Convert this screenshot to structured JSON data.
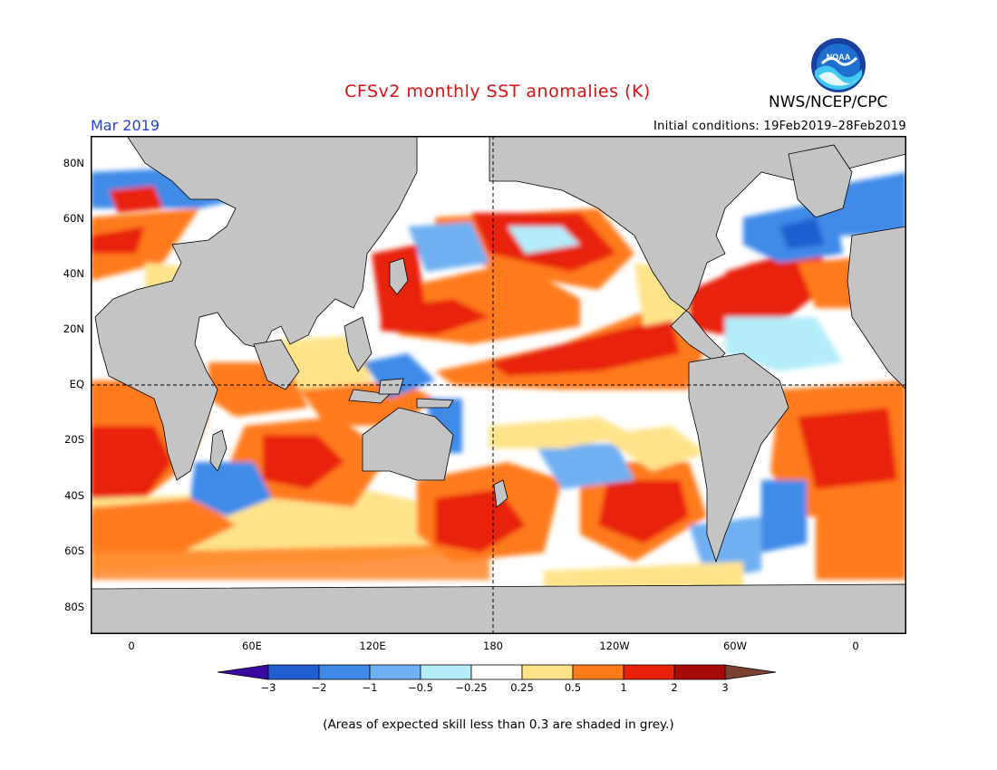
{
  "title": "CFSv2 monthly SST anomalies (K)",
  "organization": "NWS/NCEP/CPC",
  "logo_text": "NOAA",
  "valid_month": "Mar 2019",
  "initial_conditions": "Initial conditions: 19Feb2019–28Feb2019",
  "footnote": "(Areas of expected skill less than 0.3 are shaded in grey.)",
  "axes": {
    "y_labels": [
      "80N",
      "60N",
      "40N",
      "20N",
      "EQ",
      "20S",
      "40S",
      "60S",
      "80S"
    ],
    "x_labels": [
      "0",
      "60E",
      "120E",
      "180",
      "120W",
      "60W",
      "0"
    ]
  },
  "colorbar": {
    "labels": [
      "−3",
      "−2",
      "−1",
      "−0.5",
      "−0.25",
      "0.25",
      "0.5",
      "1",
      "2",
      "3"
    ],
    "colors": [
      "#3a0aa0",
      "#1f5fd0",
      "#3f8ae8",
      "#6fb0f2",
      "#b4ecfa",
      "#ffffff",
      "#ffe38a",
      "#ff7a1a",
      "#e8200a",
      "#a80a0a",
      "#7a4030"
    ]
  },
  "map_colors": {
    "land_grey": "#c4c4c4",
    "ocean_white": "#ffffff",
    "frame": "#000000"
  }
}
